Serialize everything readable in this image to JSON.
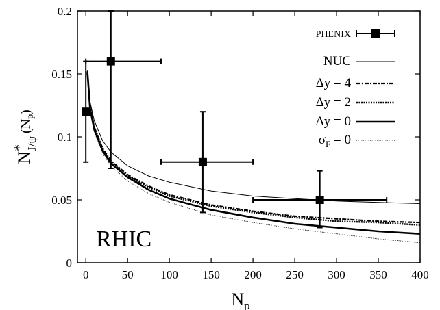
{
  "chart_data": {
    "type": "line",
    "title": "",
    "xlabel": "N",
    "xlabel_sub": "p",
    "ylabel_main": "N",
    "ylabel_star": "*",
    "ylabel_sub": "J/ψ",
    "ylabel_paren": "(N",
    "ylabel_paren_sub": "p",
    "ylabel_close": ")",
    "xlim": [
      -10,
      400
    ],
    "ylim": [
      0,
      0.2
    ],
    "xticks": [
      "0",
      "50",
      "100",
      "150",
      "200",
      "250",
      "300",
      "350",
      "400"
    ],
    "yticks": [
      "0",
      "0.05",
      "0.1",
      "0.15",
      "0.2"
    ],
    "annotation": "RHIC",
    "legend_position": "top-right",
    "phenix": {
      "name": "PHENIX",
      "points": [
        {
          "x": 0,
          "y": 0.12,
          "xerr": 0,
          "ylow": 0.08,
          "yhigh": 0.16
        },
        {
          "x": 30,
          "y": 0.16,
          "xlow": 0,
          "xhigh": 90,
          "ylow": 0.075,
          "yhigh": 0.2
        },
        {
          "x": 140,
          "y": 0.08,
          "xlow": 90,
          "xhigh": 200,
          "ylow": 0.04,
          "yhigh": 0.12
        },
        {
          "x": 280,
          "y": 0.05,
          "xlow": 200,
          "xhigh": 360,
          "ylow": 0.028,
          "yhigh": 0.073
        }
      ]
    },
    "series": [
      {
        "name": "NUC",
        "style": "thin",
        "x": [
          2,
          5,
          10,
          20,
          30,
          50,
          75,
          100,
          150,
          200,
          250,
          300,
          350,
          400
        ],
        "y": [
          0.153,
          0.128,
          0.113,
          0.097,
          0.088,
          0.077,
          0.069,
          0.064,
          0.057,
          0.053,
          0.051,
          0.049,
          0.048,
          0.047
        ]
      },
      {
        "name": "Δy = 4",
        "style": "dashdot",
        "x": [
          2,
          5,
          10,
          20,
          30,
          50,
          75,
          100,
          150,
          200,
          250,
          300,
          350,
          400
        ],
        "y": [
          0.152,
          0.124,
          0.108,
          0.091,
          0.081,
          0.07,
          0.061,
          0.054,
          0.046,
          0.041,
          0.037,
          0.035,
          0.033,
          0.032
        ]
      },
      {
        "name": "Δy = 2",
        "style": "dotted",
        "x": [
          2,
          5,
          10,
          20,
          30,
          50,
          75,
          100,
          150,
          200,
          250,
          300,
          350,
          400
        ],
        "y": [
          0.152,
          0.124,
          0.107,
          0.09,
          0.08,
          0.069,
          0.06,
          0.053,
          0.045,
          0.04,
          0.036,
          0.033,
          0.032,
          0.03
        ]
      },
      {
        "name": "Δy = 0",
        "style": "thick",
        "x": [
          2,
          5,
          10,
          20,
          30,
          50,
          75,
          100,
          150,
          200,
          250,
          300,
          350,
          400
        ],
        "y": [
          0.151,
          0.123,
          0.106,
          0.089,
          0.079,
          0.068,
          0.058,
          0.051,
          0.042,
          0.036,
          0.031,
          0.028,
          0.025,
          0.023
        ]
      },
      {
        "name": "σF = 0",
        "name_main": "σ",
        "name_sub": "F",
        "name_rest": " = 0",
        "style": "finedotted",
        "x": [
          2,
          5,
          10,
          20,
          30,
          50,
          75,
          100,
          150,
          200,
          250,
          300,
          350,
          400
        ],
        "y": [
          0.15,
          0.121,
          0.104,
          0.087,
          0.077,
          0.065,
          0.055,
          0.048,
          0.038,
          0.032,
          0.027,
          0.023,
          0.019,
          0.016
        ]
      }
    ]
  }
}
